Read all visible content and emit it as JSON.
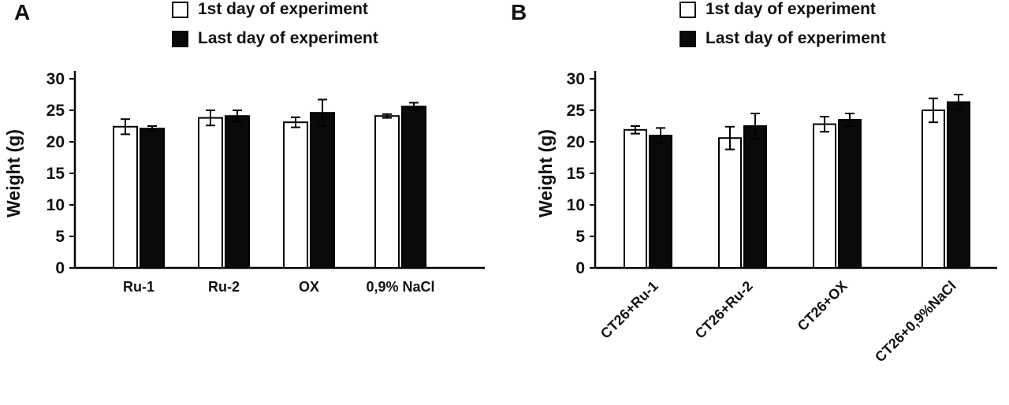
{
  "panel_labels": [
    "A",
    "B"
  ],
  "colors": {
    "open_bar": "#ffffff",
    "filled_bar": "#0a0a0a",
    "axis": "#000000"
  },
  "chart_data": [
    {
      "type": "bar",
      "title": "",
      "xlabel": "",
      "ylabel": "Weight (g)",
      "ylim": [
        0,
        30
      ],
      "yticks": [
        0,
        5,
        10,
        15,
        20,
        25,
        30
      ],
      "grid": false,
      "legend_position": "top",
      "categories": [
        "Ru-1",
        "Ru-2",
        "OX",
        "0,9% NaCl"
      ],
      "series": [
        {
          "name": "1st day of experiment",
          "fill": "#ffffff",
          "values": [
            22.4,
            23.8,
            23.1,
            24.1
          ],
          "errors": [
            1.2,
            1.2,
            0.8,
            0.3
          ]
        },
        {
          "name": "Last day of experiment",
          "fill": "#0a0a0a",
          "values": [
            22.1,
            24.1,
            24.6,
            25.6
          ],
          "errors": [
            0.4,
            0.9,
            2.1,
            0.6
          ]
        }
      ]
    },
    {
      "type": "bar",
      "title": "",
      "xlabel": "",
      "ylabel": "Weight  (g)",
      "ylim": [
        0,
        30
      ],
      "yticks": [
        0,
        5,
        10,
        15,
        20,
        25,
        30
      ],
      "grid": false,
      "legend_position": "top",
      "categories": [
        "CT26+Ru-1",
        "CT26+Ru-2",
        "CT26+OX",
        "CT26+0,9%NaCl"
      ],
      "series": [
        {
          "name": "1st day of experiment",
          "fill": "#ffffff",
          "values": [
            21.9,
            20.6,
            22.8,
            25.0
          ],
          "errors": [
            0.6,
            1.8,
            1.2,
            1.9
          ]
        },
        {
          "name": "Last day of experiment",
          "fill": "#0a0a0a",
          "values": [
            21.0,
            22.5,
            23.5,
            26.3
          ],
          "errors": [
            1.2,
            2.0,
            1.0,
            1.2
          ]
        }
      ]
    }
  ]
}
